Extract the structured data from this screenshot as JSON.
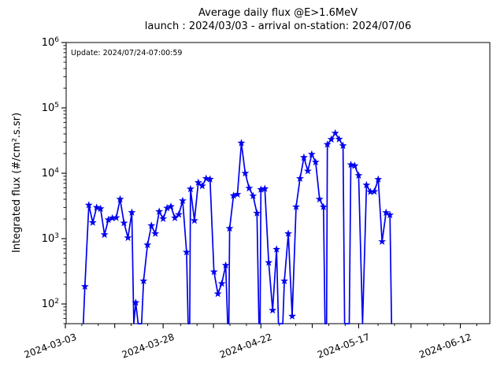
{
  "figure": {
    "title_line1": "Average daily flux @E>1.6MeV",
    "title_line2": "launch : 2024/03/03 - arrival on-station: 2024/07/06",
    "annotation": "Update: 2024/07/24-07:00:59"
  },
  "chart_data": {
    "type": "line",
    "title": "Average daily flux @E>1.6MeV",
    "subtitle": "launch : 2024/03/03 - arrival on-station: 2024/07/06",
    "annotation": "Update: 2024/07/24-07:00:59",
    "xlabel": "",
    "ylabel": "Integrated flux (#/cm².s.sr)",
    "y_scale": "log",
    "ylim": [
      50,
      1000000
    ],
    "y_tick_exponents": [
      2,
      3,
      4,
      5,
      6
    ],
    "x_unit": "days since 2024-03-03",
    "x_tick_days": [
      0,
      25,
      50,
      75,
      101
    ],
    "x_tick_labels": [
      "2024-03-03",
      "2024-03-28",
      "2024-04-22",
      "2024-05-17",
      "2024-06-12"
    ],
    "x_tick_rotation_deg": 20,
    "xlim_days": [
      0,
      108.4
    ],
    "grid": false,
    "legend": "none",
    "marker": "star",
    "line_color": "#0000ee",
    "series": [
      {
        "name": "average daily flux",
        "points_day_value": [
          [
            4.6,
            0
          ],
          [
            5,
            185
          ],
          [
            6,
            3260
          ],
          [
            7,
            1760
          ],
          [
            8,
            3000
          ],
          [
            9,
            2870
          ],
          [
            10,
            1150
          ],
          [
            11,
            1940
          ],
          [
            12,
            2060
          ],
          [
            13,
            2090
          ],
          [
            14,
            4000
          ],
          [
            15,
            1730
          ],
          [
            16,
            1030
          ],
          [
            17,
            2510
          ],
          [
            17.5,
            0
          ],
          [
            18,
            105
          ],
          [
            18.6,
            0
          ],
          [
            19.5,
            0
          ],
          [
            20,
            225
          ],
          [
            21,
            800
          ],
          [
            22,
            1580
          ],
          [
            23,
            1190
          ],
          [
            24,
            2600
          ],
          [
            25,
            2010
          ],
          [
            26,
            2930
          ],
          [
            27,
            3100
          ],
          [
            28,
            2070
          ],
          [
            29,
            2340
          ],
          [
            30,
            3800
          ],
          [
            31,
            620
          ],
          [
            31.4,
            0
          ],
          [
            31.8,
            0
          ],
          [
            32,
            5750
          ],
          [
            33,
            1890
          ],
          [
            34,
            7200
          ],
          [
            35,
            6400
          ],
          [
            36,
            8300
          ],
          [
            37,
            8100
          ],
          [
            38,
            310
          ],
          [
            39,
            143
          ],
          [
            40,
            205
          ],
          [
            41,
            390
          ],
          [
            41.5,
            0
          ],
          [
            41.8,
            0
          ],
          [
            42,
            1430
          ],
          [
            43,
            4550
          ],
          [
            44,
            4750
          ],
          [
            45,
            29000
          ],
          [
            46,
            10000
          ],
          [
            47,
            5900
          ],
          [
            48,
            4500
          ],
          [
            49,
            2450
          ],
          [
            49.5,
            0
          ],
          [
            49.8,
            0
          ],
          [
            50,
            5650
          ],
          [
            51,
            5800
          ],
          [
            52,
            430
          ],
          [
            53,
            80
          ],
          [
            54,
            685
          ],
          [
            54.5,
            0
          ],
          [
            55.6,
            0
          ],
          [
            56,
            225
          ],
          [
            57,
            1190
          ],
          [
            58,
            65
          ],
          [
            59,
            3060
          ],
          [
            60,
            8300
          ],
          [
            61,
            17400
          ],
          [
            62,
            10800
          ],
          [
            63,
            19500
          ],
          [
            64,
            14800
          ],
          [
            65,
            4000
          ],
          [
            66,
            3050
          ],
          [
            66.4,
            0
          ],
          [
            66.8,
            0
          ],
          [
            67,
            27600
          ],
          [
            68,
            33000
          ],
          [
            69,
            41000
          ],
          [
            70,
            33200
          ],
          [
            71,
            26400
          ],
          [
            71.4,
            0
          ],
          [
            72.6,
            0
          ],
          [
            73,
            13500
          ],
          [
            74,
            13000
          ],
          [
            75,
            9260
          ],
          [
            76,
            0
          ],
          [
            77,
            6600
          ],
          [
            78,
            5200
          ],
          [
            79,
            5250
          ],
          [
            80,
            8050
          ],
          [
            81,
            900
          ],
          [
            82,
            2500
          ],
          [
            83,
            2300
          ],
          [
            83.4,
            0
          ]
        ]
      }
    ]
  }
}
